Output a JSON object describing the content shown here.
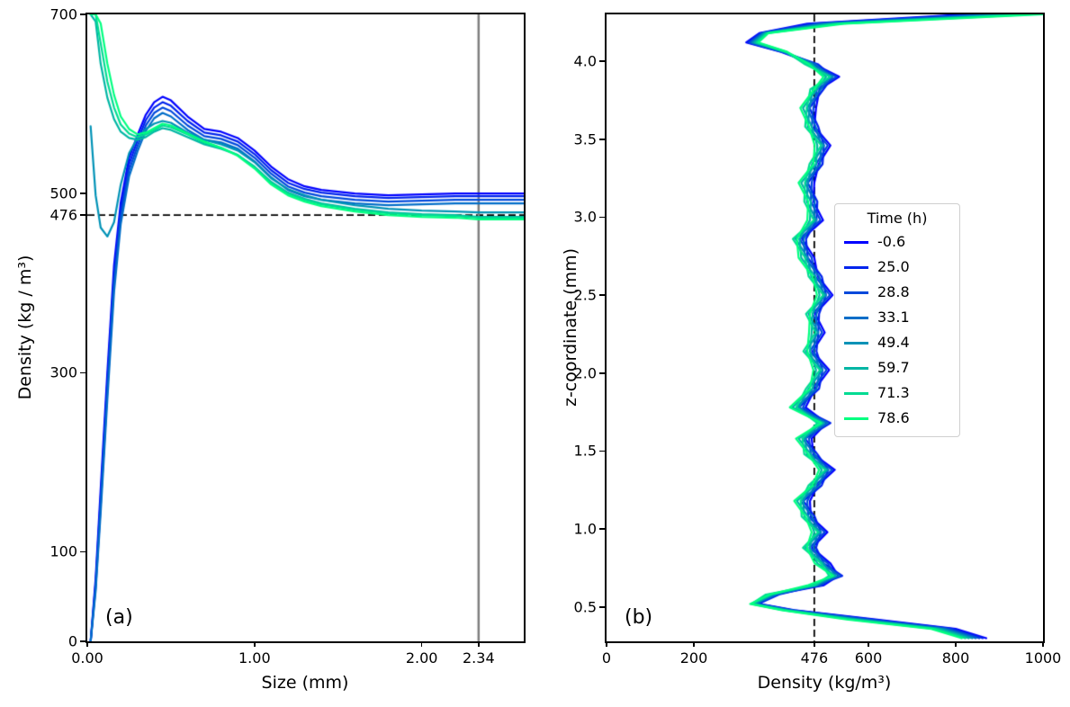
{
  "figure": {
    "background": "#ffffff"
  },
  "chart_data": [
    {
      "type": "line",
      "panel": "a",
      "panel_label": "(a)",
      "title": "",
      "xlabel": "Size (mm)",
      "ylabel": "Density (kg / m³)",
      "xlim": [
        0,
        2.61
      ],
      "ylim": [
        0,
        700
      ],
      "grid": false,
      "xticks": [
        {
          "v": 0,
          "label": "0.00"
        },
        {
          "v": 1,
          "label": "1.00"
        },
        {
          "v": 2,
          "label": "2.00"
        },
        {
          "v": 2.34,
          "label": "2.34"
        }
      ],
      "yticks": [
        {
          "v": 0,
          "label": "0"
        },
        {
          "v": 100,
          "label": "100"
        },
        {
          "v": 300,
          "label": "300"
        },
        {
          "v": 476,
          "label": "476"
        },
        {
          "v": 500,
          "label": "500"
        },
        {
          "v": 700,
          "label": "700"
        }
      ],
      "hline": {
        "y": 476,
        "color": "#000000",
        "dash": true,
        "width": 1.8
      },
      "vline": {
        "x": 2.34,
        "color": "#7f7f7f",
        "dash": false,
        "width": 2.5
      },
      "x": [
        0.02,
        0.05,
        0.08,
        0.12,
        0.16,
        0.2,
        0.25,
        0.3,
        0.35,
        0.4,
        0.45,
        0.5,
        0.6,
        0.7,
        0.8,
        0.9,
        1.0,
        1.1,
        1.2,
        1.3,
        1.4,
        1.6,
        1.8,
        2.0,
        2.2,
        2.34,
        2.61
      ],
      "series": [
        {
          "name": "-0.6",
          "color": "#0000ff",
          "y": [
            0,
            70,
            170,
            300,
            420,
            490,
            540,
            565,
            588,
            602,
            608,
            604,
            586,
            572,
            569,
            562,
            548,
            530,
            516,
            508,
            504,
            500,
            498,
            499,
            500,
            500,
            500
          ]
        },
        {
          "name": "25.0",
          "color": "#0024ed",
          "y": [
            0,
            65,
            160,
            290,
            410,
            482,
            533,
            559,
            582,
            596,
            602,
            598,
            581,
            568,
            565,
            558,
            544,
            526,
            512,
            505,
            501,
            497,
            495,
            496,
            497,
            497,
            497
          ]
        },
        {
          "name": "28.8",
          "color": "#0049db",
          "y": [
            0,
            60,
            152,
            280,
            400,
            474,
            526,
            553,
            576,
            590,
            596,
            592,
            576,
            564,
            561,
            554,
            540,
            522,
            508,
            501,
            497,
            493,
            491,
            492,
            493,
            493,
            493
          ]
        },
        {
          "name": "33.1",
          "color": "#006dc8",
          "y": [
            0,
            56,
            144,
            270,
            390,
            466,
            519,
            547,
            570,
            584,
            590,
            586,
            571,
            560,
            557,
            550,
            536,
            518,
            504,
            497,
            493,
            489,
            487,
            488,
            489,
            489,
            489
          ]
        },
        {
          "name": "49.4",
          "color": "#0092b6",
          "y": [
            575,
            498,
            462,
            452,
            468,
            510,
            545,
            562,
            572,
            578,
            581,
            579,
            568,
            560,
            555,
            548,
            535,
            517,
            505,
            498,
            493,
            487,
            483,
            481,
            480,
            479,
            479
          ]
        },
        {
          "name": "59.7",
          "color": "#00b6a4",
          "y": [
            700,
            692,
            645,
            607,
            583,
            569,
            562,
            560,
            563,
            569,
            573,
            571,
            563,
            555,
            550,
            543,
            530,
            513,
            501,
            494,
            489,
            483,
            479,
            477,
            476,
            474,
            474
          ]
        },
        {
          "name": "71.3",
          "color": "#00db92",
          "y": [
            700,
            700,
            668,
            625,
            596,
            577,
            567,
            563,
            566,
            571,
            576,
            574,
            566,
            557,
            551,
            543,
            529,
            512,
            500,
            493,
            488,
            482,
            478,
            476,
            475,
            473,
            473
          ]
        },
        {
          "name": "78.6",
          "color": "#00ff80",
          "y": [
            700,
            700,
            690,
            645,
            610,
            586,
            572,
            566,
            568,
            573,
            578,
            576,
            567,
            558,
            551,
            542,
            528,
            510,
            498,
            491,
            486,
            480,
            476,
            474,
            473,
            471,
            471
          ]
        }
      ]
    },
    {
      "type": "line",
      "panel": "b",
      "panel_label": "(b)",
      "title": "",
      "xlabel": "Density (kg/m³)",
      "ylabel": "z-coordinate (mm)",
      "xlim": [
        0,
        1000
      ],
      "ylim": [
        0.28,
        4.3
      ],
      "grid": false,
      "xticks": [
        {
          "v": 0,
          "label": "0"
        },
        {
          "v": 200,
          "label": "200"
        },
        {
          "v": 476,
          "label": "476"
        },
        {
          "v": 600,
          "label": "600"
        },
        {
          "v": 800,
          "label": "800"
        },
        {
          "v": 1000,
          "label": "1000"
        }
      ],
      "yticks": [
        {
          "v": 0.5,
          "label": "0.5"
        },
        {
          "v": 1.0,
          "label": "1.0"
        },
        {
          "v": 1.5,
          "label": "1.5"
        },
        {
          "v": 2.0,
          "label": "2.0"
        },
        {
          "v": 2.5,
          "label": "2.5"
        },
        {
          "v": 3.0,
          "label": "3.0"
        },
        {
          "v": 3.5,
          "label": "3.5"
        },
        {
          "v": 4.0,
          "label": "4.0"
        }
      ],
      "vline": {
        "x": 476,
        "color": "#000000",
        "dash": true,
        "width": 1.8
      },
      "legend": {
        "title": "Time (h)",
        "position": "center-right"
      },
      "z": [
        0.3,
        0.36,
        0.42,
        0.48,
        0.52,
        0.58,
        0.64,
        0.7,
        0.78,
        0.88,
        0.98,
        1.08,
        1.18,
        1.28,
        1.38,
        1.48,
        1.58,
        1.68,
        1.78,
        1.9,
        2.02,
        2.14,
        2.26,
        2.38,
        2.5,
        2.62,
        2.74,
        2.86,
        2.98,
        3.1,
        3.22,
        3.34,
        3.46,
        3.58,
        3.7,
        3.82,
        3.9,
        3.98,
        4.06,
        4.12,
        4.18,
        4.24,
        4.3
      ],
      "series": [
        {
          "name": "-0.6",
          "color": "#0000ff",
          "density": [
            870,
            800,
            620,
            430,
            350,
            386,
            498,
            531,
            513,
            471,
            506,
            468,
            466,
            484,
            523,
            474,
            470,
            504,
            456,
            478,
            510,
            472,
            500,
            478,
            518,
            484,
            476,
            448,
            496,
            474,
            476,
            486,
            513,
            476,
            480,
            488,
            533,
            476,
            400,
            320,
            350,
            460,
            820
          ]
        },
        {
          "name": "25.0",
          "color": "#0024ed",
          "density": [
            862,
            792,
            610,
            426,
            347,
            395,
            483,
            540,
            498,
            480,
            491,
            477,
            451,
            493,
            508,
            483,
            455,
            513,
            441,
            487,
            495,
            481,
            485,
            487,
            503,
            493,
            461,
            457,
            481,
            483,
            461,
            495,
            498,
            485,
            465,
            497,
            518,
            485,
            402,
            324,
            353,
            472,
            846
          ]
        },
        {
          "name": "28.8",
          "color": "#0049db",
          "density": [
            854,
            784,
            600,
            422,
            344,
            380,
            492,
            525,
            507,
            465,
            500,
            462,
            460,
            478,
            517,
            468,
            464,
            498,
            450,
            472,
            504,
            466,
            494,
            472,
            512,
            478,
            470,
            442,
            490,
            468,
            470,
            480,
            507,
            470,
            474,
            482,
            527,
            470,
            404,
            328,
            356,
            484,
            872
          ]
        },
        {
          "name": "33.1",
          "color": "#006dc8",
          "density": [
            846,
            776,
            590,
            418,
            341,
            389,
            477,
            534,
            492,
            474,
            485,
            471,
            445,
            487,
            502,
            477,
            449,
            507,
            435,
            481,
            489,
            475,
            479,
            481,
            497,
            487,
            455,
            451,
            475,
            477,
            455,
            489,
            492,
            479,
            459,
            491,
            512,
            479,
            406,
            332,
            359,
            496,
            898
          ]
        },
        {
          "name": "49.4",
          "color": "#0092b6",
          "density": [
            838,
            768,
            580,
            414,
            338,
            371,
            483,
            516,
            498,
            456,
            491,
            453,
            451,
            469,
            508,
            459,
            455,
            489,
            441,
            463,
            495,
            457,
            485,
            463,
            503,
            469,
            461,
            433,
            481,
            459,
            461,
            471,
            498,
            461,
            465,
            473,
            518,
            461,
            408,
            336,
            362,
            508,
            924
          ]
        },
        {
          "name": "59.7",
          "color": "#00b6a4",
          "density": [
            830,
            760,
            570,
            410,
            335,
            380,
            468,
            525,
            483,
            465,
            476,
            462,
            436,
            478,
            493,
            468,
            440,
            498,
            426,
            472,
            480,
            466,
            470,
            472,
            488,
            478,
            446,
            442,
            466,
            468,
            446,
            480,
            483,
            470,
            450,
            482,
            503,
            470,
            410,
            340,
            365,
            520,
            950
          ]
        },
        {
          "name": "71.3",
          "color": "#00db92",
          "density": [
            822,
            752,
            560,
            406,
            332,
            365,
            477,
            510,
            492,
            450,
            485,
            447,
            445,
            463,
            502,
            453,
            449,
            483,
            435,
            457,
            489,
            451,
            479,
            457,
            497,
            463,
            455,
            427,
            475,
            453,
            455,
            465,
            492,
            455,
            459,
            467,
            512,
            455,
            412,
            344,
            368,
            532,
            976
          ]
        },
        {
          "name": "78.6",
          "color": "#00ff80",
          "density": [
            814,
            744,
            550,
            402,
            329,
            374,
            462,
            519,
            477,
            459,
            470,
            456,
            430,
            472,
            487,
            462,
            434,
            492,
            420,
            466,
            474,
            460,
            464,
            466,
            482,
            472,
            440,
            436,
            460,
            462,
            440,
            474,
            477,
            464,
            444,
            476,
            497,
            464,
            414,
            348,
            371,
            544,
            1000
          ]
        }
      ]
    }
  ]
}
